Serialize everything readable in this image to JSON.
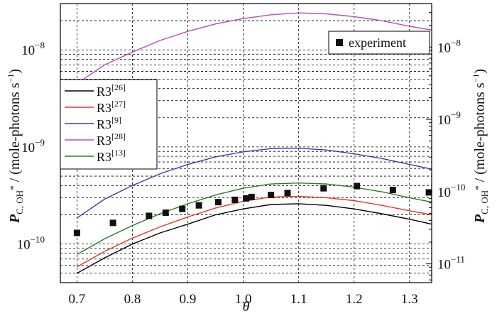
{
  "chart_data": {
    "type": "line",
    "xlabel": "θ",
    "ylabel_left": {
      "main": "P",
      "sub": "C, OH",
      "star": "*",
      "rest": " / (mole-photons s",
      "exp": "−1",
      "close": ")"
    },
    "ylabel_right": {
      "main": "P",
      "sub": "C, OH",
      "star": "*",
      "rest": " / (mole-photons s",
      "exp": "−1",
      "close": ")"
    },
    "xlim": [
      0.67,
      1.34
    ],
    "x_ticks": [
      "0.7",
      "0.8",
      "0.9",
      "1.0",
      "1.1",
      "1.2",
      "1.3"
    ],
    "left_axis": {
      "scale": "log",
      "ylim": [
        4e-11,
        3e-08
      ],
      "major_ticks": [
        {
          "base": "10",
          "exp": "−10",
          "value": 1e-10
        },
        {
          "base": "10",
          "exp": "−9",
          "value": 1e-09
        },
        {
          "base": "10",
          "exp": "−8",
          "value": 1e-08
        }
      ]
    },
    "right_axis": {
      "scale": "log",
      "ylim": [
        5.5e-12,
        4e-08
      ],
      "major_ticks": [
        {
          "base": "10",
          "exp": "−11",
          "value": 1e-11
        },
        {
          "base": "10",
          "exp": "−10",
          "value": 1e-10
        },
        {
          "base": "10",
          "exp": "−9",
          "value": 1e-09
        },
        {
          "base": "10",
          "exp": "−8",
          "value": 1e-08
        }
      ]
    },
    "grid": true,
    "x": [
      0.7,
      0.75,
      0.8,
      0.85,
      0.9,
      0.95,
      1.0,
      1.05,
      1.1,
      1.15,
      1.2,
      1.25,
      1.3,
      1.34
    ],
    "series": [
      {
        "name": "R3",
        "ref": "[26]",
        "color": "#000000",
        "values": [
          5e-11,
          7.2e-11,
          1e-10,
          1.3e-10,
          1.6e-10,
          2e-10,
          2.3e-10,
          2.55e-10,
          2.6e-10,
          2.5e-10,
          2.3e-10,
          2.05e-10,
          1.8e-10,
          1.6e-10
        ]
      },
      {
        "name": "R3",
        "ref": "[27]",
        "color": "#e8342a",
        "values": [
          5.8e-11,
          8.4e-11,
          1.15e-10,
          1.5e-10,
          1.9e-10,
          2.35e-10,
          2.75e-10,
          3.05e-10,
          3.1e-10,
          3e-10,
          2.8e-10,
          2.5e-10,
          2.2e-10,
          2e-10
        ]
      },
      {
        "name": "R3",
        "ref": "[9]",
        "color": "#3a3fa8",
        "values": [
          1.85e-10,
          2.9e-10,
          4e-10,
          5.3e-10,
          6.6e-10,
          7.9e-10,
          8.9e-10,
          9.6e-10,
          9.7e-10,
          9.3e-10,
          8.5e-10,
          7.6e-10,
          6.6e-10,
          5.9e-10
        ]
      },
      {
        "name": "R3",
        "ref": "[28]",
        "color": "#c04ab8",
        "values": [
          4.5e-09,
          7e-09,
          9.5e-09,
          1.25e-08,
          1.55e-08,
          1.85e-08,
          2.1e-08,
          2.3e-08,
          2.4e-08,
          2.35e-08,
          2.2e-08,
          2e-08,
          1.75e-08,
          1.6e-08
        ]
      },
      {
        "name": "R3",
        "ref": "[13]",
        "color": "#2e7a24",
        "values": [
          7.8e-11,
          1.13e-10,
          1.55e-10,
          2.05e-10,
          2.6e-10,
          3.2e-10,
          3.75e-10,
          4.15e-10,
          4.25e-10,
          4.15e-10,
          3.85e-10,
          3.45e-10,
          3e-10,
          2.7e-10
        ]
      }
    ],
    "experiment": {
      "name": "experiment",
      "x": [
        0.7,
        0.765,
        0.83,
        0.86,
        0.89,
        0.92,
        0.955,
        0.985,
        1.005,
        1.015,
        1.05,
        1.08,
        1.145,
        1.205,
        1.27,
        1.335
      ],
      "y": [
        1.3e-10,
        1.65e-10,
        1.95e-10,
        2.1e-10,
        2.3e-10,
        2.5e-10,
        2.7e-10,
        2.85e-10,
        2.95e-10,
        3.05e-10,
        3.2e-10,
        3.35e-10,
        3.75e-10,
        3.95e-10,
        3.6e-10,
        3.4e-10
      ]
    },
    "legend_series": {
      "position": "left"
    },
    "legend_experiment": {
      "position": "top-right"
    }
  }
}
